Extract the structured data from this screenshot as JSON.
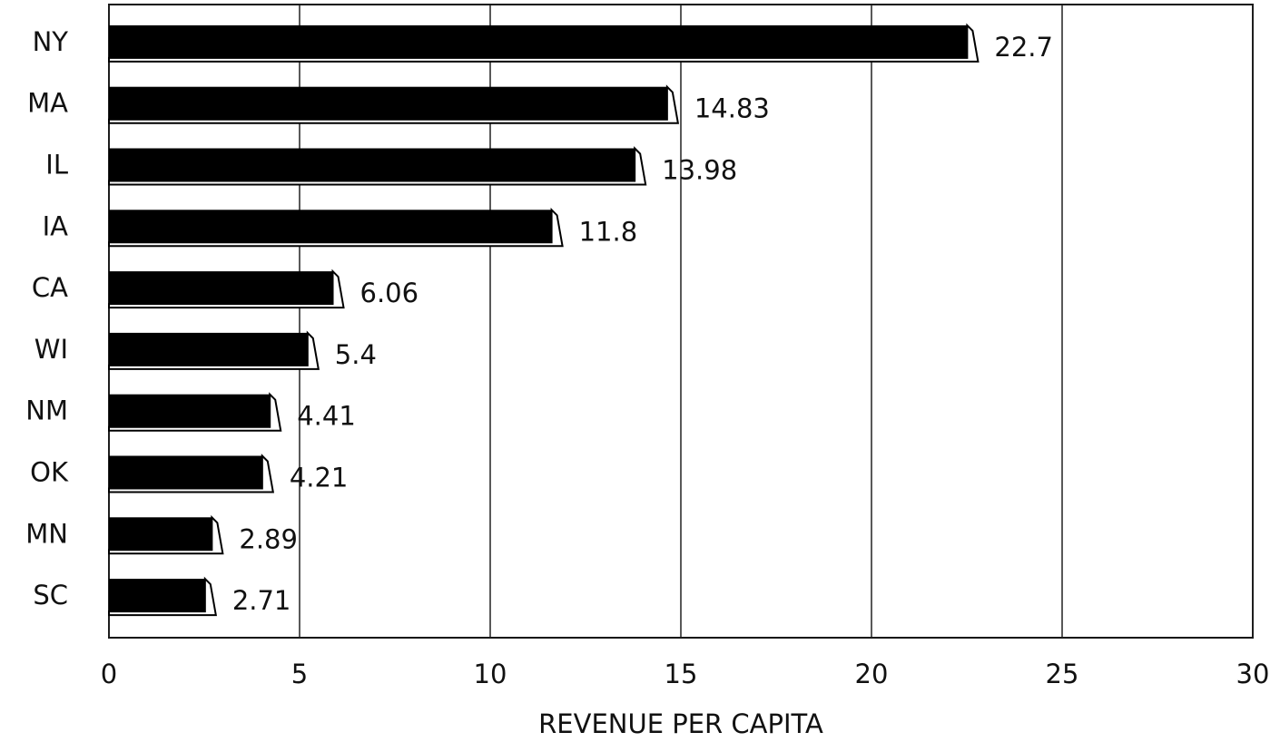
{
  "chart_data": {
    "type": "barh",
    "xlabel": "REVENUE PER CAPITA",
    "categories": [
      "NY",
      "MA",
      "IL",
      "IA",
      "CA",
      "WI",
      "NM",
      "OK",
      "MN",
      "SC"
    ],
    "values": [
      22.7,
      14.83,
      13.98,
      11.8,
      6.06,
      5.4,
      4.41,
      4.21,
      2.89,
      2.71
    ],
    "color": "#000000",
    "xlim": [
      0,
      30
    ],
    "xticks": [
      0,
      5,
      10,
      15,
      20,
      25,
      30
    ],
    "grid": true
  }
}
